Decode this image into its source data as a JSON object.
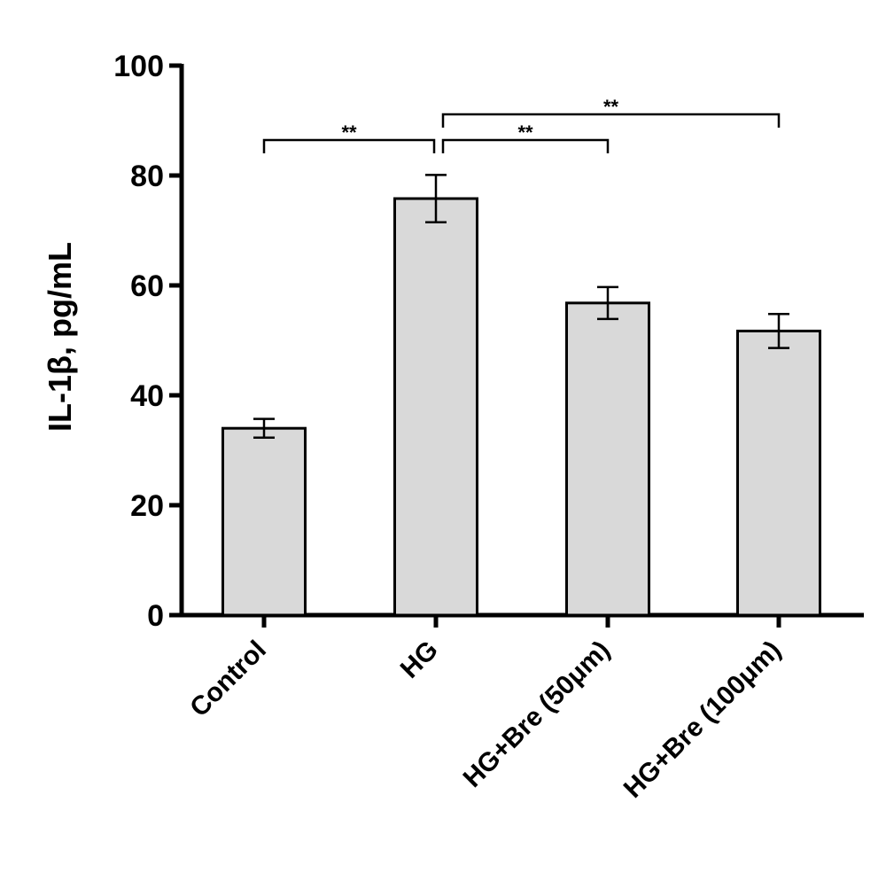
{
  "chart_data": {
    "type": "bar",
    "title": "",
    "xlabel": "",
    "ylabel": "IL-1β, pg/mL",
    "ylim": [
      0,
      100
    ],
    "yticks": [
      0,
      20,
      40,
      60,
      80,
      100
    ],
    "categories": [
      "Control",
      "HG",
      "HG+Bre (50μm)",
      "HG+Bre (100μm)"
    ],
    "values": [
      34,
      75.8,
      56.8,
      51.7
    ],
    "errors": [
      1.7,
      4.3,
      2.9,
      3.1
    ],
    "bar_color": "#d9d9d9",
    "edge_color": "#000000",
    "significance": [
      {
        "from": "Control",
        "to": "HG",
        "label": "**"
      },
      {
        "from": "HG",
        "to": "HG+Bre (50μm)",
        "label": "**"
      },
      {
        "from": "HG",
        "to": "HG+Bre (100μm)",
        "label": "**"
      }
    ],
    "grid": false
  }
}
